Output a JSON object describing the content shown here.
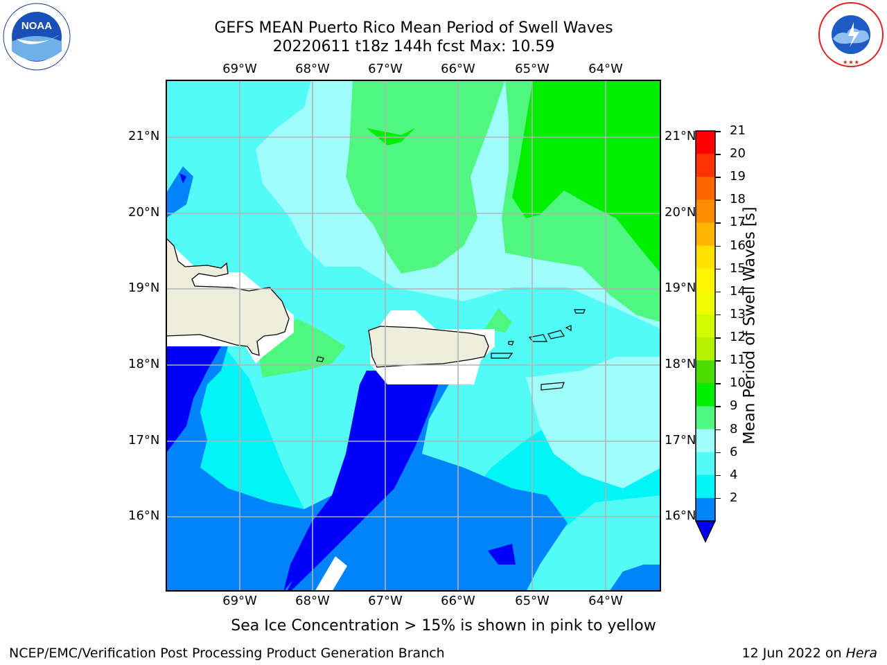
{
  "header": {
    "title_line1": "GEFS MEAN Puerto Rico Mean Period of Swell Waves",
    "title_line2": "20220611 t18z 144h fcst   Max: 10.59"
  },
  "logos": {
    "noaa_text": "NOAA",
    "noaa_ring_text": "NATIONAL OCEANIC AND ATMOSPHERIC ADMINISTRATION · U.S. DEPARTMENT OF COMMERCE",
    "nws_ring_text": "NATIONAL WEATHER SERVICE"
  },
  "map": {
    "lon_labels": [
      "69°W",
      "68°W",
      "67°W",
      "66°W",
      "65°W",
      "64°W"
    ],
    "lat_labels": [
      "21°N",
      "20°N",
      "19°N",
      "18°N",
      "17°N",
      "16°N"
    ],
    "palette": {
      "c2_4": "#0000fa",
      "c4_6": "#0083fb",
      "c6_8": "#00f4f8",
      "c8_9": "#52fbf5",
      "c9_10": "#9ffdfb",
      "c10_11": "#4ff780",
      "c11_12": "#00ef00",
      "land": "#eeeedc",
      "grid": "#b3b3b3"
    }
  },
  "colorbar": {
    "label": "Mean Period of Swell Waves [s]",
    "ticks": [
      "21",
      "20",
      "19",
      "18",
      "17",
      "16",
      "15",
      "14",
      "13",
      "12",
      "11",
      "10",
      "9",
      "8",
      "6",
      "4",
      "2"
    ],
    "colors": [
      "#fe0000",
      "#fe3200",
      "#fe6400",
      "#fe8c00",
      "#ffb400",
      "#ffe100",
      "#fff500",
      "#f0fa00",
      "#d2fa00",
      "#b4f000",
      "#4bdc00",
      "#00ef00",
      "#4ff780",
      "#9ffdfb",
      "#52fbf5",
      "#00f4f8",
      "#0083fb"
    ],
    "under_color": "#0000fa"
  },
  "footer": {
    "ice_note": "Sea Ice Concentration > 15% is shown in pink to yellow",
    "branch": "NCEP/EMC/Verification Post Processing Product Generation Branch",
    "date_prefix": "12 Jun 2022 on ",
    "date_machine": "Hera"
  }
}
